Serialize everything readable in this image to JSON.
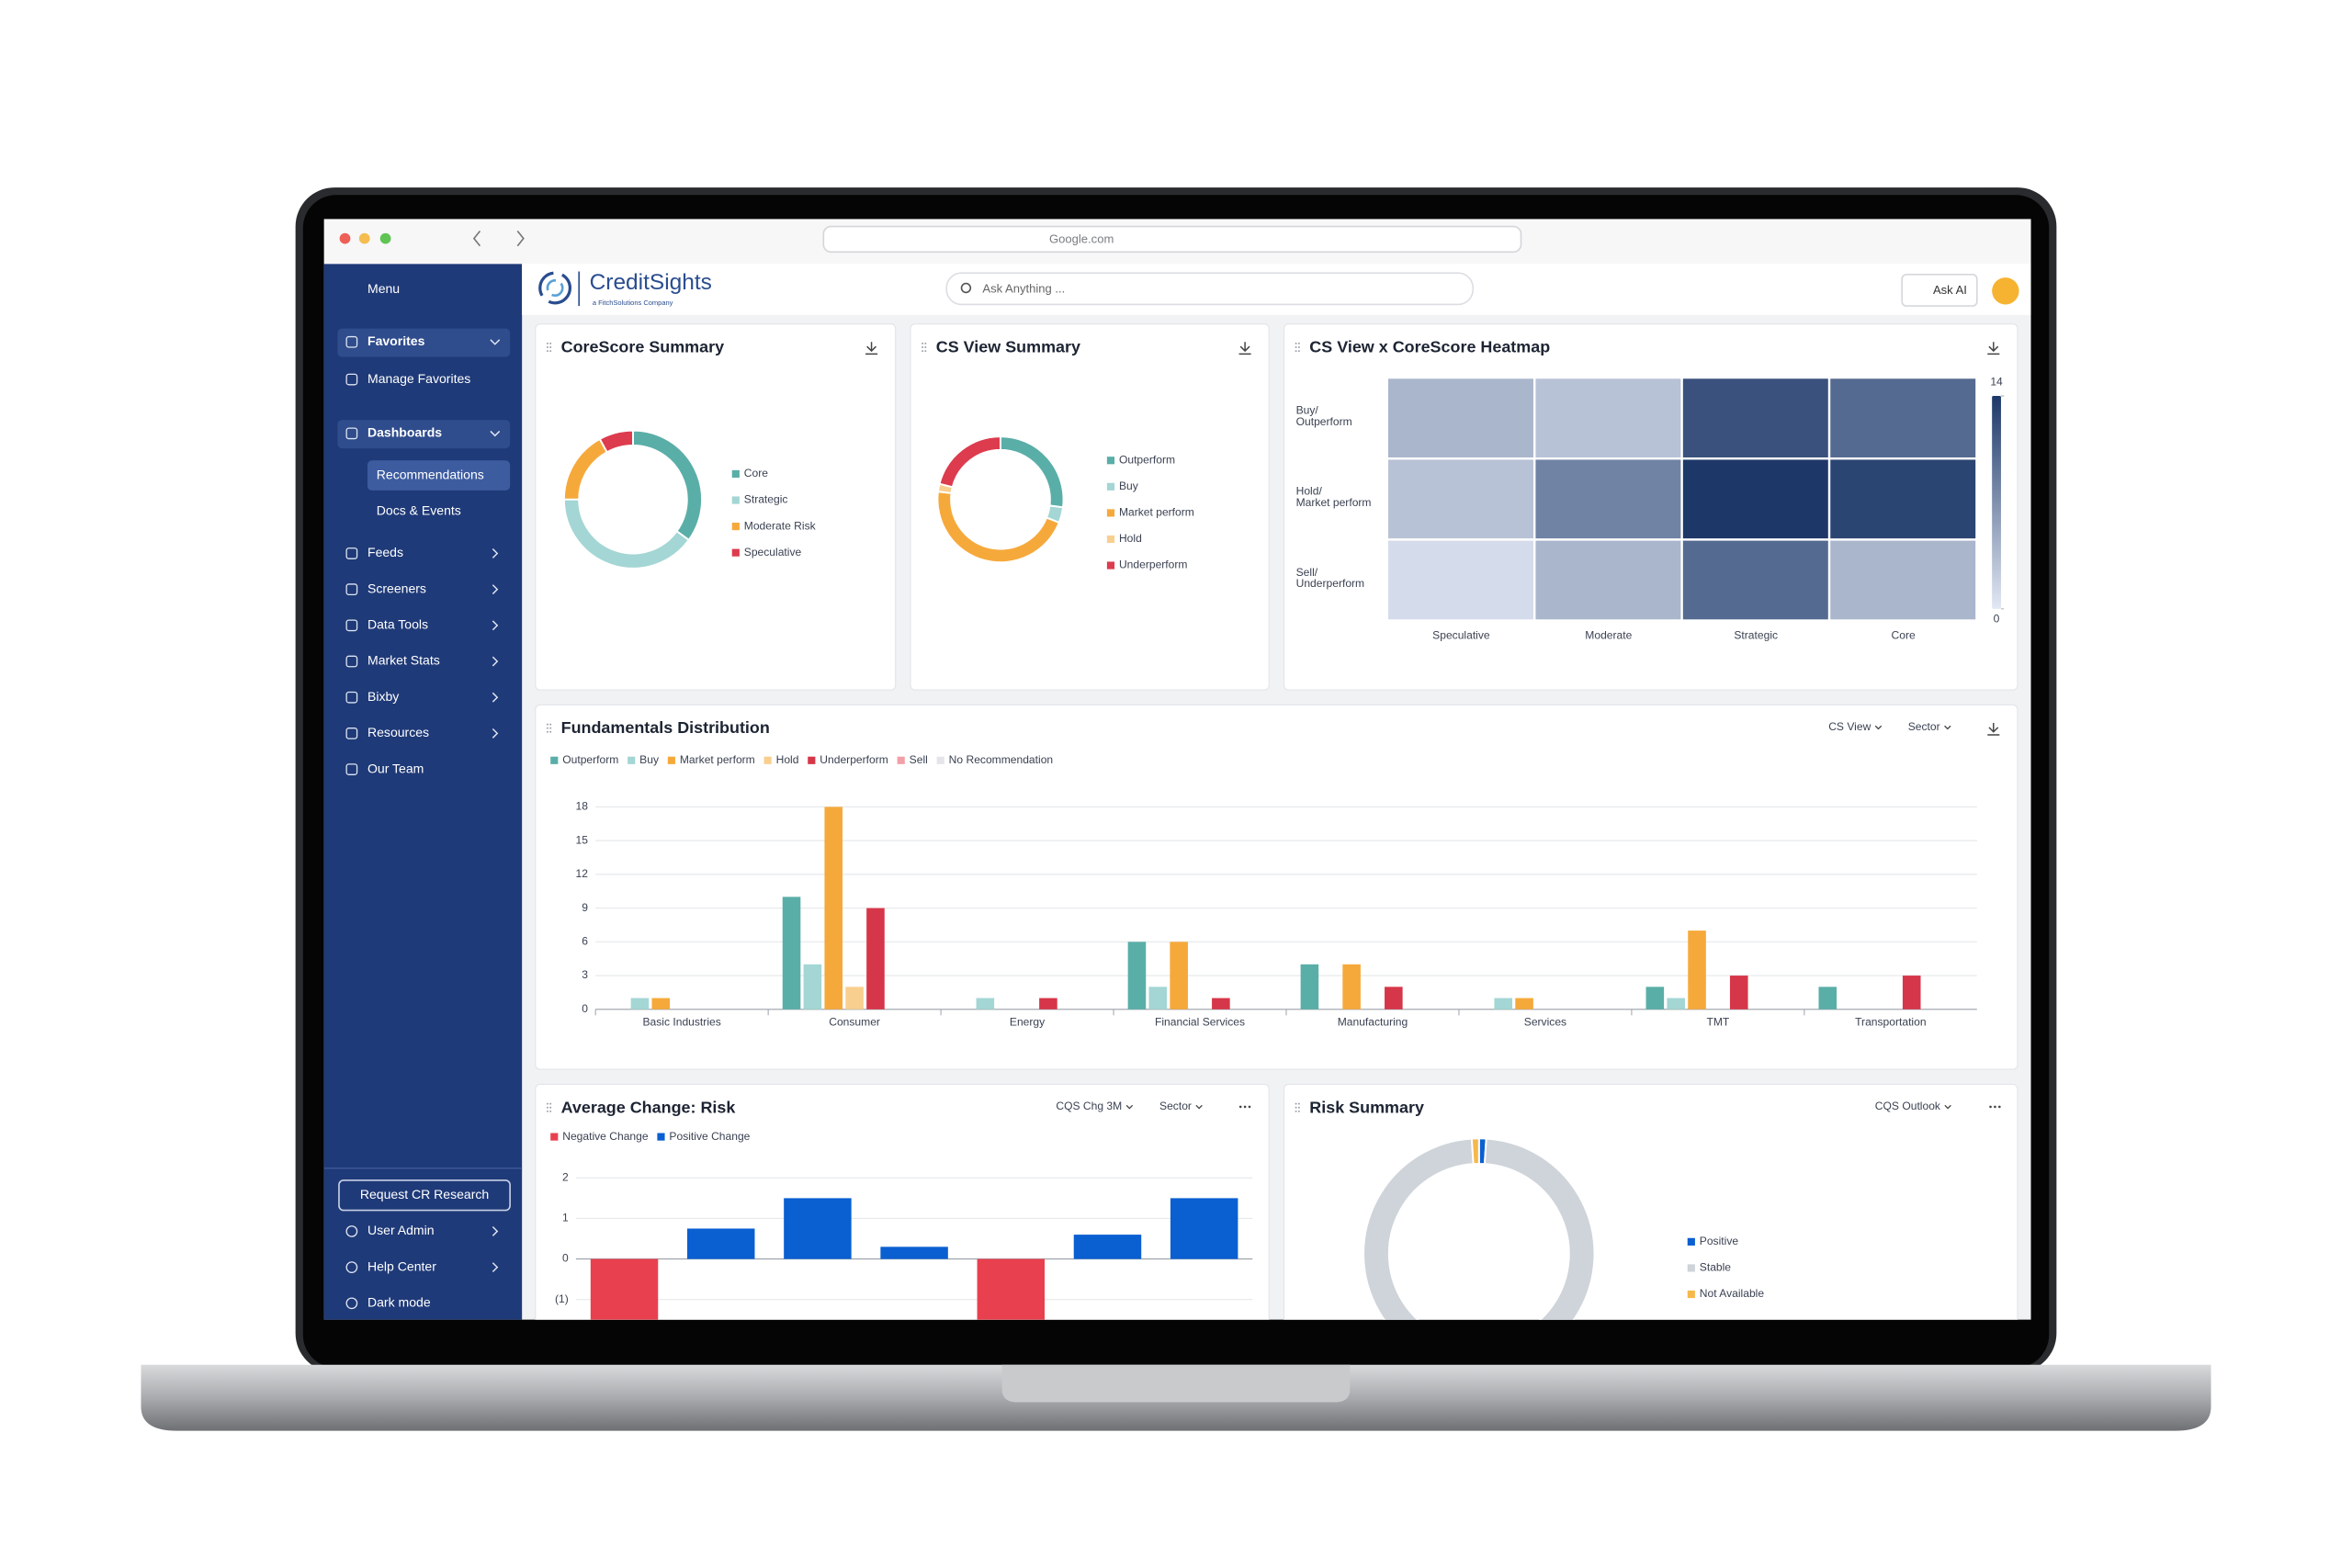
{
  "browser": {
    "url": "Google.com"
  },
  "header": {
    "logo": "CreditSights",
    "logo_sub": "a FitchSolutions Company",
    "search": "Ask Anything ...",
    "ask_ai": "Ask AI"
  },
  "sidebar": {
    "menu": "Menu",
    "items": [
      "Favorites",
      "Manage Favorites",
      "Dashboards",
      "Recommendations",
      "Docs & Events",
      "Feeds",
      "Screeners",
      "Data Tools",
      "Market Stats",
      "Bixby",
      "Resources",
      "Our Team"
    ],
    "request": "Request CR Research",
    "bottom": [
      "User Admin",
      "Help Center",
      "Dark mode"
    ]
  },
  "chart_data": [
    {
      "type": "donut",
      "title": "CoreScore Summary",
      "categories": [
        "Core",
        "Strategic",
        "Moderate Risk",
        "Speculative"
      ],
      "values": [
        35,
        40,
        17,
        8
      ],
      "colors": [
        "#5aaea8",
        "#a3d6d4",
        "#f6a93b",
        "#dd3b4e"
      ]
    },
    {
      "type": "donut",
      "title": "CS View Summary",
      "categories": [
        "Outperform",
        "Buy",
        "Market perform",
        "Hold",
        "Underperform"
      ],
      "values": [
        27,
        4,
        46,
        2,
        21
      ],
      "colors": [
        "#5aaea8",
        "#a3d6d4",
        "#f6a93b",
        "#f9cf8f",
        "#dd3b4e"
      ]
    },
    {
      "type": "heatmap",
      "title": "CS View x CoreScore Heatmap",
      "x_categories": [
        "Speculative",
        "Moderate",
        "Strategic",
        "Core"
      ],
      "y_categories": [
        [
          "Buy/",
          "Outperform"
        ],
        [
          "Hold/",
          "Market perform"
        ],
        [
          "Sell/",
          "Underperform"
        ]
      ],
      "values": [
        [
          4,
          3,
          12,
          10
        ],
        [
          3,
          8,
          14,
          13
        ],
        [
          1,
          4,
          10,
          4
        ]
      ],
      "zlim": [
        0,
        14
      ],
      "zticks": [
        0,
        14
      ],
      "colors": [
        "#e2e8f4",
        "#1d3868"
      ]
    },
    {
      "type": "bar",
      "title": "Fundamentals Distribution",
      "controls": [
        "CS View",
        "Sector"
      ],
      "categories": [
        "Basic Industries",
        "Consumer",
        "Energy",
        "Financial Services",
        "Manufacturing",
        "Services",
        "TMT",
        "Transportation"
      ],
      "series": [
        {
          "name": "Outperform",
          "color": "#5aaea8",
          "values": [
            0,
            10,
            0,
            6,
            4,
            0,
            2,
            2
          ]
        },
        {
          "name": "Buy",
          "color": "#a3d6d4",
          "values": [
            1,
            4,
            1,
            2,
            0,
            1,
            1,
            0
          ]
        },
        {
          "name": "Market perform",
          "color": "#f6a93b",
          "values": [
            1,
            18,
            0,
            6,
            4,
            1,
            7,
            0
          ]
        },
        {
          "name": "Hold",
          "color": "#f9cf8f",
          "values": [
            0,
            2,
            0,
            0,
            0,
            0,
            0,
            0
          ]
        },
        {
          "name": "Underperform",
          "color": "#d63649",
          "values": [
            0,
            9,
            1,
            1,
            2,
            0,
            3,
            3
          ]
        },
        {
          "name": "Sell",
          "color": "#f2a0a8",
          "values": [
            0,
            0,
            0,
            0,
            0,
            0,
            0,
            0
          ]
        },
        {
          "name": "No Recommendation",
          "color": "#e3e5e8",
          "values": [
            0,
            0,
            0,
            0,
            0,
            0,
            0,
            0
          ]
        }
      ],
      "ylim": [
        0,
        18
      ],
      "yticks": [
        0,
        3,
        6,
        9,
        12,
        15,
        18
      ],
      "grid": true
    },
    {
      "type": "bar",
      "title": "Average Change: Risk",
      "controls": [
        "CQS Chg 3M",
        "Sector"
      ],
      "categories": [
        null,
        null,
        null,
        null,
        null,
        null,
        null
      ],
      "series": [
        {
          "name": "Negative Change",
          "color": "#e8404f",
          "values": [
            -1.5,
            null,
            null,
            null,
            -1.5,
            null,
            null
          ]
        },
        {
          "name": "Positive Change",
          "color": "#0a5fd1",
          "values": [
            null,
            0.75,
            1.5,
            0.3,
            null,
            0.6,
            1.5
          ]
        }
      ],
      "ylim": [
        -1.5,
        2.2
      ],
      "yticks": [
        {
          "value": -1,
          "label": "(1)"
        },
        0,
        1,
        2
      ],
      "grid": true
    },
    {
      "type": "donut",
      "title": "Risk Summary",
      "controls": [
        "CQS Outlook"
      ],
      "categories": [
        "Positive",
        "Stable",
        "Not Available"
      ],
      "values": [
        1,
        98,
        1
      ],
      "colors": [
        "#0a5fd1",
        "#cfd4da",
        "#f6b84d"
      ]
    }
  ]
}
